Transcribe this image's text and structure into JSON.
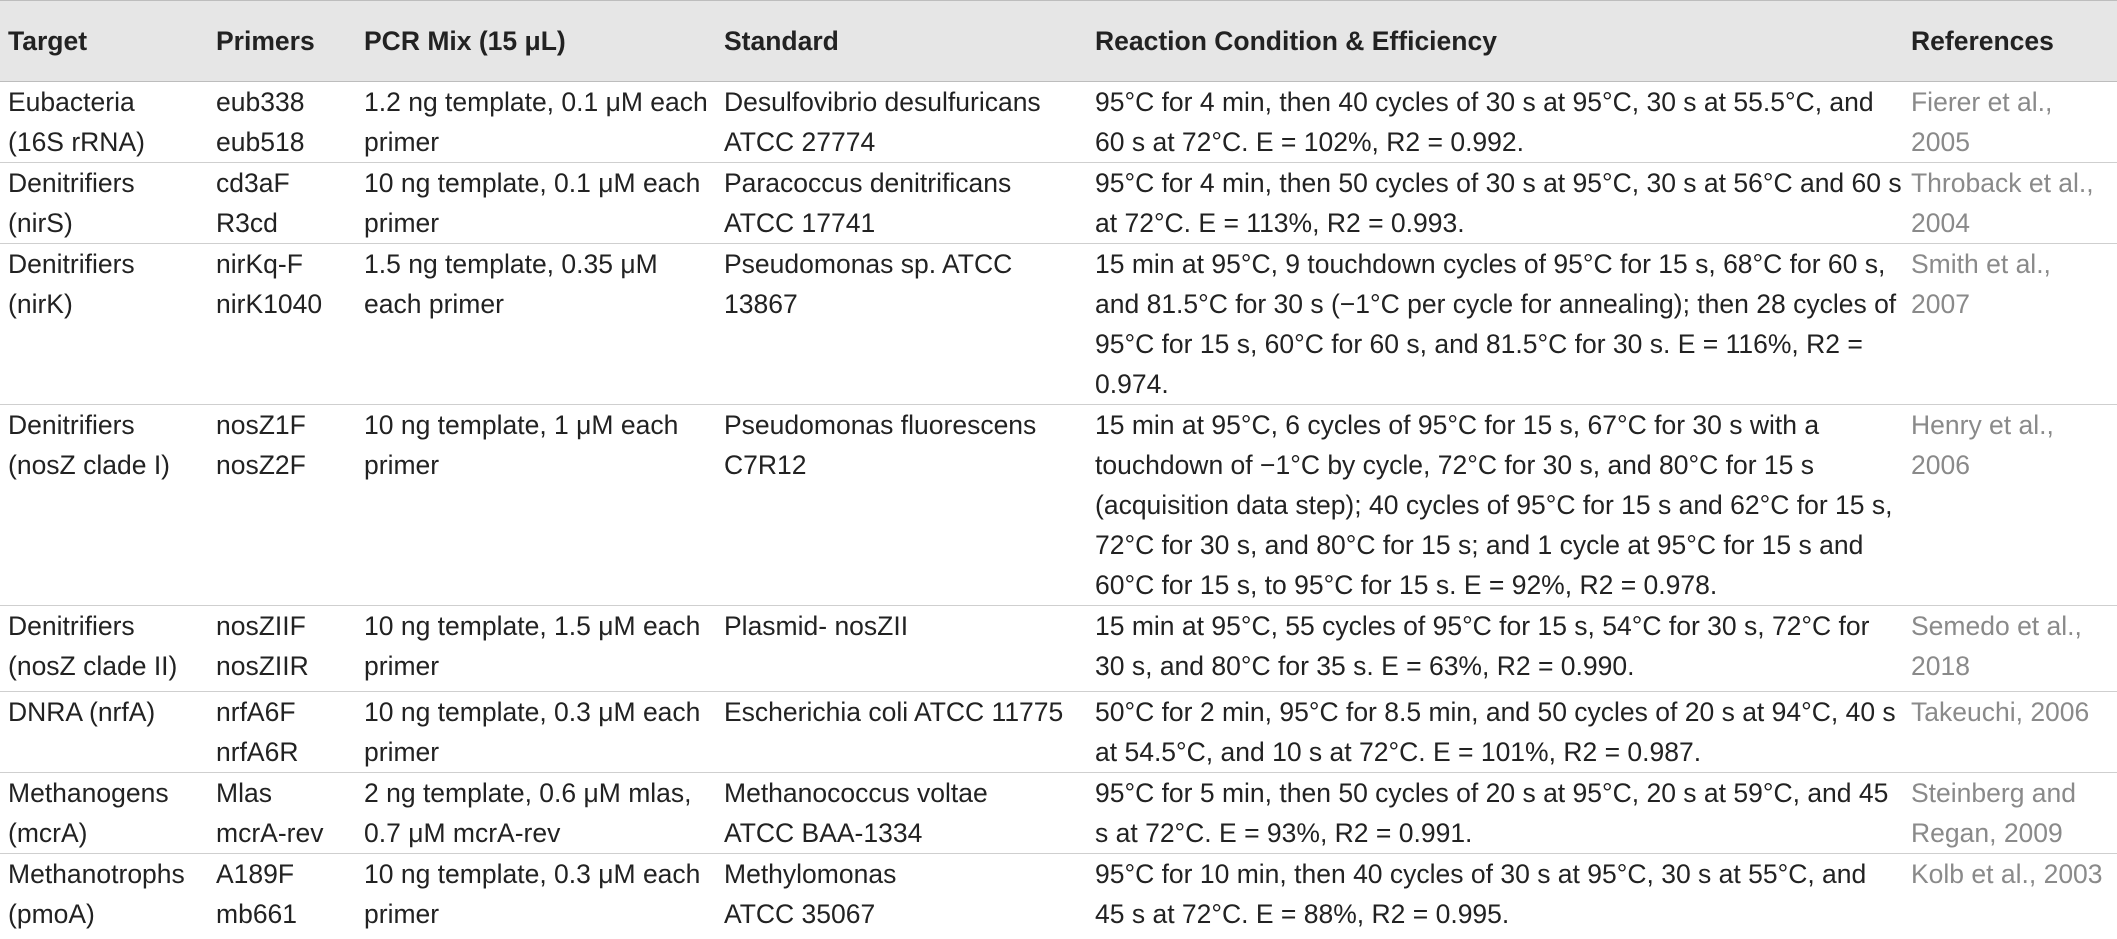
{
  "headers": [
    "Target",
    "Primers",
    "PCR Mix (15 μL)",
    "Standard",
    "Reaction Condition & Efficiency",
    "References"
  ],
  "rows": [
    {
      "target": [
        "Eubacteria",
        "(16S rRNA)"
      ],
      "primers": [
        "eub338",
        "eub518"
      ],
      "pcr_mix": "1.2 ng template, 0.1 μM each primer",
      "standard": [
        "Desulfovibrio desulfuricans",
        "ATCC 27774"
      ],
      "condition": "95°C for 4 min, then 40 cycles of 30 s at 95°C, 30 s at 55.5°C, and 60 s at 72°C.",
      "efficiency": "E = 102%, R2 = 0.992.",
      "reference": "Fierer et al., 2005"
    },
    {
      "target": [
        "Denitrifiers",
        "(nirS)"
      ],
      "primers": [
        "cd3aF",
        "R3cd"
      ],
      "pcr_mix": "10 ng template, 0.1 μM each primer",
      "standard": [
        "Paracoccus denitrificans",
        "ATCC 17741"
      ],
      "condition": "95°C for 4 min, then 50 cycles of 30 s at 95°C, 30 s at 56°C and 60 s at 72°C.",
      "efficiency": "E = 113%, R2 = 0.993.",
      "reference": "Throback et al., 2004"
    },
    {
      "target": [
        "Denitrifiers",
        "(nirK)"
      ],
      "primers": [
        "nirKq-F",
        "nirK1040"
      ],
      "pcr_mix": "1.5 ng template, 0.35 μM each primer",
      "standard": [
        "Pseudomonas sp.",
        "ATCC 13867"
      ],
      "condition": "15 min at 95°C, 9 touchdown cycles of 95°C for 15 s, 68°C for 60 s, and 81.5°C for 30 s (−1°C per cycle for annealing); then 28 cycles of 95°C for 15 s, 60°C for 60 s, and 81.5°C for 30 s.",
      "efficiency": "E = 116%, R2 = 0.974.",
      "reference": "Smith et al., 2007"
    },
    {
      "target": [
        "Denitrifiers",
        "(nosZ clade I)"
      ],
      "primers": [
        "nosZ1F",
        "nosZ2F"
      ],
      "pcr_mix": "10 ng template, 1 μM each primer",
      "standard": [
        "Pseudomonas fluorescens",
        "C7R12"
      ],
      "condition": "15 min at 95°C, 6 cycles of 95°C for 15 s, 67°C for 30 s with a touchdown of −1°C by cycle, 72°C for 30 s, and 80°C for 15 s (acquisition data step); 40 cycles of 95°C for 15 s and 62°C for 15 s, 72°C for 30 s, and 80°C for 15 s; and 1 cycle at 95°C for 15 s and 60°C for 15 s, to 95°C for 15 s.",
      "efficiency": "E = 92%, R2 = 0.978.",
      "reference": "Henry et al., 2006"
    },
    {
      "target": [
        "Denitrifiers",
        "(nosZ clade II)"
      ],
      "primers": [
        "nosZIIF",
        "nosZIIR"
      ],
      "pcr_mix": "10 ng template, 1.5 μM each primer",
      "standard": [
        "Plasmid- nosZII",
        ""
      ],
      "condition": "15 min at 95°C, 55 cycles of 95°C for 15 s, 54°C for 30 s, 72°C for 30 s, and 80°C for 35 s.",
      "efficiency": "E = 63%, R2 = 0.990.",
      "reference": "Semedo et al., 2018"
    },
    {
      "target": [
        "DNRA (nrfA)",
        ""
      ],
      "primers": [
        "nrfA6F",
        "nrfA6R"
      ],
      "pcr_mix": "10 ng template, 0.3 μM each primer",
      "standard": [
        "Escherichia coli",
        "ATCC 11775"
      ],
      "condition": "50°C for 2 min, 95°C for 8.5 min, and 50 cycles of 20 s at 94°C, 40 s at 54.5°C, and 10 s at 72°C.",
      "efficiency": "E = 101%, R2 = 0.987.",
      "reference": "Takeuchi, 2006"
    },
    {
      "target": [
        "Methanogens",
        "(mcrA)"
      ],
      "primers": [
        "Mlas",
        "mcrA-rev"
      ],
      "pcr_mix": "2 ng template, 0.6 μM mlas, 0.7 μM mcrA-rev",
      "standard": [
        "Methanococcus voltae",
        "ATCC BAA-1334"
      ],
      "condition": "95°C for 5 min, then 50 cycles of 20 s at 95°C, 20 s at 59°C, and 45 s at 72°C.",
      "efficiency": "E = 93%, R2 = 0.991.",
      "reference": "Steinberg and Regan, 2009"
    },
    {
      "target": [
        "Methanotrophs",
        "(pmoA)"
      ],
      "primers": [
        "A189F",
        "mb661"
      ],
      "pcr_mix": "10 ng template, 0.3 μM each primer",
      "standard": [
        "Methylomonas",
        "ATCC 35067"
      ],
      "condition": "95°C for 10 min, then 40 cycles of 30 s at 95°C, 30 s at 55°C, and 45 s at 72°C.",
      "efficiency": "E = 88%, R2 = 0.995.",
      "reference": "Kolb et al., 2003"
    }
  ]
}
